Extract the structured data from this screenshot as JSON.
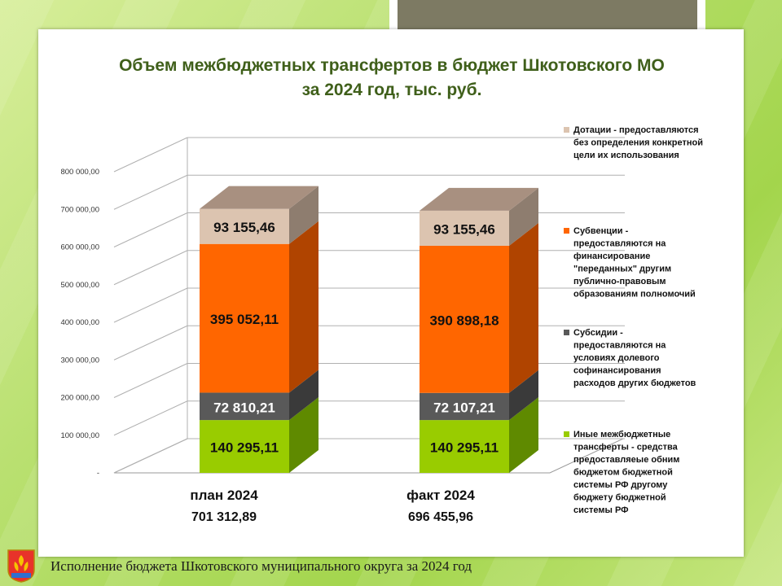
{
  "title_line1": "Объем межбюджетных трансфертов в бюджет Шкотовского МО",
  "title_line2": "за 2024 год, тыс. руб.",
  "footer_text": "Исполнение бюджета Шкотовского муниципального округа за 2024 год",
  "chart_data": {
    "type": "bar",
    "stacked": true,
    "three_d": true,
    "categories": [
      "план  2024",
      "факт 2024"
    ],
    "category_totals": [
      "701 312,89",
      "696 455,96"
    ],
    "ylim": [
      0,
      800000
    ],
    "yticks": [
      0,
      100000,
      200000,
      300000,
      400000,
      500000,
      600000,
      700000,
      800000
    ],
    "ytick_labels": [
      "-",
      "100 000,00",
      "200 000,00",
      "300 000,00",
      "400 000,00",
      "500 000,00",
      "600 000,00",
      "700 000,00",
      "800 000,00"
    ],
    "grid": true,
    "legend_position": "right",
    "series": [
      {
        "name": "Иные межбюджетные трансферты - средства предоставляеые обним бюджетом бюджетной системы РФ другому бюджету бюджетной системы РФ",
        "legend_lines": [
          "Иные межбюджетные",
          "трансферты - средства",
          "предоставляеые обним",
          "бюджетом бюджетной",
          "системы РФ другому",
          "бюджету бюджетной",
          "системы РФ"
        ],
        "values": [
          140295.11,
          140295.11
        ],
        "labels": [
          "140 295,11",
          "140 295,11"
        ],
        "color": "#99cc00",
        "side_color": "#5f8a00",
        "top_color": "#b8de44"
      },
      {
        "name": "Субсидии - предоставляются на условиях долевого софинансирования расходов других бюджетов",
        "legend_lines": [
          "Субсидии -",
          "предоставляются на",
          "условиях долевого",
          "софинансирования",
          "расходов других бюджетов"
        ],
        "values": [
          72810.21,
          72107.21
        ],
        "labels": [
          "72 810,21",
          "72 107,21"
        ],
        "color": "#595959",
        "side_color": "#3a3a3a",
        "top_color": "#7a7a7a"
      },
      {
        "name": "Субвенции - предоставляются на финансирование \"переданных\" другим публично-правовым образованиям полномочий",
        "legend_lines": [
          "Субвенции -",
          "предоставляются на",
          "финансирование",
          "\"переданных\" другим",
          "публично-правовым",
          "образованиям полномочий"
        ],
        "values": [
          395052.11,
          390898.18
        ],
        "labels": [
          "395 052,11",
          "390 898,18"
        ],
        "color": "#ff6600",
        "side_color": "#b04400",
        "top_color": "#ff8a3a"
      },
      {
        "name": "Дотации - предоставляются без определения конкретной цели их использования",
        "legend_lines": [
          "Дотации - предоставляются",
          "без определения  конкретной",
          "цели их использования"
        ],
        "values": [
          93155.46,
          93155.46
        ],
        "labels": [
          "93 155,46",
          "93 155,46"
        ],
        "color": "#dcc4b0",
        "side_color": "#8e7d6f",
        "top_color": "#a89080"
      }
    ]
  }
}
